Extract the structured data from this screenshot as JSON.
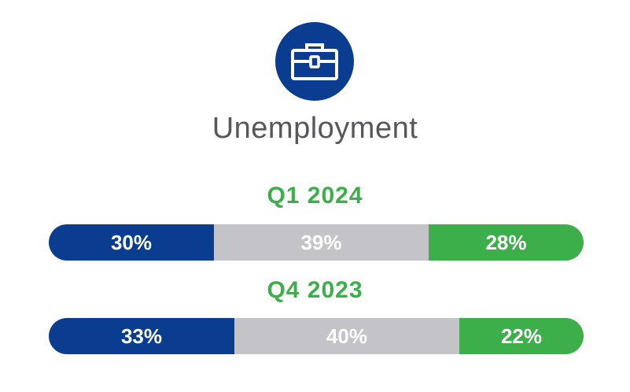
{
  "title": "Unemployment",
  "icon": "briefcase-icon",
  "colors": {
    "blue": "#0a3d8f",
    "gray": "#c4c4c8",
    "green": "#3cae4a",
    "period": "#3cae4a",
    "title": "#555759"
  },
  "chart_data": {
    "type": "bar",
    "orientation": "horizontal-stacked-100",
    "categories": [
      "Q1 2024",
      "Q4 2023"
    ],
    "series": [
      {
        "values": [
          30,
          33
        ],
        "labels": [
          "30%",
          "33%"
        ],
        "color": "#0a3d8f"
      },
      {
        "values": [
          39,
          40
        ],
        "labels": [
          "39%",
          "40%"
        ],
        "color": "#c4c4c8"
      },
      {
        "values": [
          28,
          22
        ],
        "labels": [
          "28%",
          "22%"
        ],
        "color": "#3cae4a"
      }
    ]
  }
}
